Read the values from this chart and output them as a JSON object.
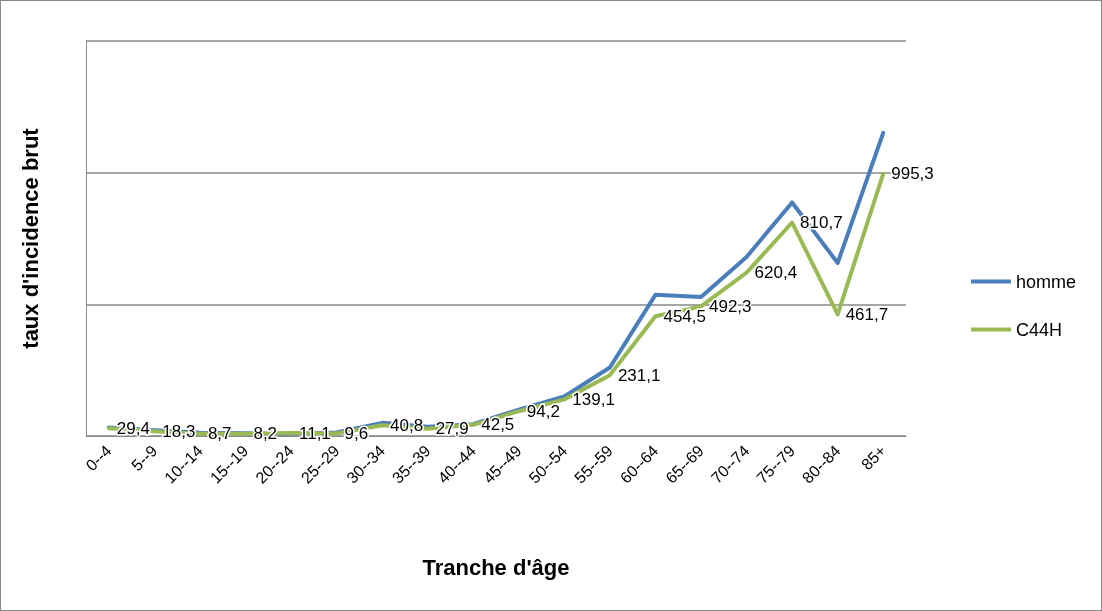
{
  "chart_data": {
    "type": "line",
    "xlabel": "Tranche d'âge",
    "ylabel": "taux d'incidence brut",
    "categories": [
      "0--4",
      "5--9",
      "10--14",
      "15--19",
      "20--24",
      "25--29",
      "30--34",
      "35--39",
      "40--44",
      "45--49",
      "50--54",
      "55--59",
      "60--64",
      "65--69",
      "70--74",
      "75--79",
      "80--84",
      "85+"
    ],
    "series": [
      {
        "name": "homme",
        "color": "#4a7ebb",
        "values": [
          32,
          22,
          12,
          10,
          9,
          13,
          50,
          35,
          45,
          100,
          150,
          260,
          536,
          528,
          680,
          887,
          657,
          1151
        ]
      },
      {
        "name": "C44H",
        "color": "#98b954",
        "values": [
          29.4,
          18.3,
          8.7,
          8.2,
          11.1,
          9.6,
          40.8,
          27.9,
          42.5,
          94.2,
          139.1,
          231.1,
          454.5,
          492.3,
          620.4,
          810.7,
          461.7,
          995.3
        ],
        "value_labels": [
          "29,4",
          "18,3",
          "8,7",
          "8,2",
          "11,1",
          "9,6",
          "40,8",
          "27,9",
          "42,5",
          "94,2",
          "139,1",
          "231,1",
          "454,5",
          "492,3",
          "620,4",
          "810,7",
          "461,7",
          "995,3"
        ]
      }
    ],
    "ylim": [
      0,
      1500
    ],
    "yticks": [
      {
        "value": 0,
        "label": null
      },
      {
        "value": 500,
        "label": null
      },
      {
        "value": 1000,
        "label": null
      },
      {
        "value": 1500,
        "label": null
      }
    ],
    "tick_labels": "x",
    "grid": "y",
    "legend": "right",
    "marker": "none",
    "line_style": "solid"
  }
}
